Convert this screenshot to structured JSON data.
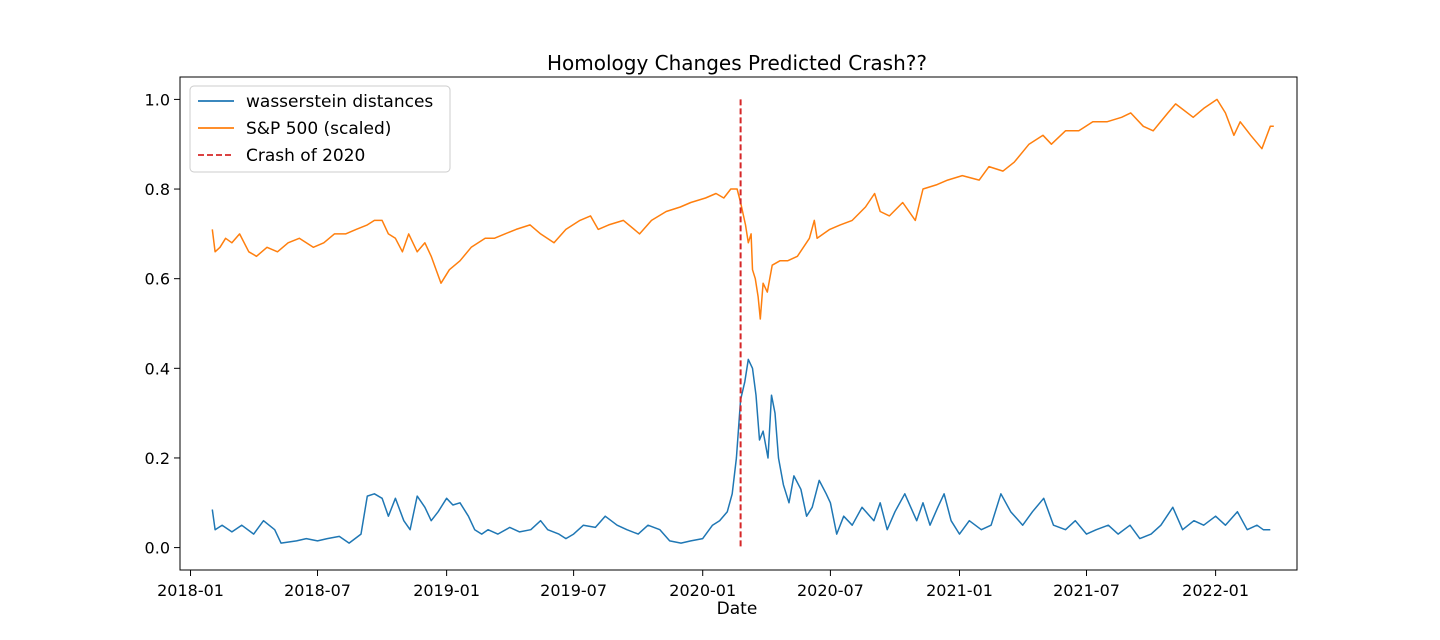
{
  "chart_data": {
    "type": "line",
    "title": "Homology Changes Predicted Crash??",
    "xlabel": "Date",
    "ylabel": "",
    "xlim": [
      "2017-12-17",
      "2022-04-27"
    ],
    "ylim": [
      -0.05,
      1.05
    ],
    "x_ticks": [
      "2018-01",
      "2018-07",
      "2019-01",
      "2019-07",
      "2020-01",
      "2020-07",
      "2021-01",
      "2021-07",
      "2022-01"
    ],
    "y_ticks": [
      "0.0",
      "0.2",
      "0.4",
      "0.6",
      "0.8",
      "1.0"
    ],
    "grid": false,
    "legend_position": "top-left",
    "series": [
      {
        "name": "wasserstein distances",
        "color": "#1f77b4",
        "points": [
          [
            "2018-02-01",
            0.085
          ],
          [
            "2018-02-05",
            0.04
          ],
          [
            "2018-02-15",
            0.05
          ],
          [
            "2018-03-01",
            0.035
          ],
          [
            "2018-03-15",
            0.05
          ],
          [
            "2018-04-01",
            0.03
          ],
          [
            "2018-04-15",
            0.06
          ],
          [
            "2018-05-01",
            0.04
          ],
          [
            "2018-05-10",
            0.01
          ],
          [
            "2018-06-01",
            0.015
          ],
          [
            "2018-06-15",
            0.02
          ],
          [
            "2018-07-01",
            0.015
          ],
          [
            "2018-07-15",
            0.02
          ],
          [
            "2018-08-01",
            0.025
          ],
          [
            "2018-08-15",
            0.01
          ],
          [
            "2018-09-01",
            0.03
          ],
          [
            "2018-09-10",
            0.115
          ],
          [
            "2018-09-20",
            0.12
          ],
          [
            "2018-10-01",
            0.11
          ],
          [
            "2018-10-10",
            0.07
          ],
          [
            "2018-10-20",
            0.11
          ],
          [
            "2018-11-01",
            0.06
          ],
          [
            "2018-11-10",
            0.04
          ],
          [
            "2018-11-20",
            0.115
          ],
          [
            "2018-12-01",
            0.09
          ],
          [
            "2018-12-10",
            0.06
          ],
          [
            "2018-12-20",
            0.08
          ],
          [
            "2019-01-01",
            0.11
          ],
          [
            "2019-01-10",
            0.095
          ],
          [
            "2019-01-20",
            0.1
          ],
          [
            "2019-02-01",
            0.07
          ],
          [
            "2019-02-10",
            0.04
          ],
          [
            "2019-02-20",
            0.03
          ],
          [
            "2019-03-01",
            0.04
          ],
          [
            "2019-03-15",
            0.03
          ],
          [
            "2019-04-01",
            0.045
          ],
          [
            "2019-04-15",
            0.035
          ],
          [
            "2019-05-01",
            0.04
          ],
          [
            "2019-05-15",
            0.06
          ],
          [
            "2019-05-25",
            0.04
          ],
          [
            "2019-06-10",
            0.03
          ],
          [
            "2019-06-20",
            0.02
          ],
          [
            "2019-07-01",
            0.03
          ],
          [
            "2019-07-15",
            0.05
          ],
          [
            "2019-08-01",
            0.045
          ],
          [
            "2019-08-15",
            0.07
          ],
          [
            "2019-09-01",
            0.05
          ],
          [
            "2019-09-15",
            0.04
          ],
          [
            "2019-10-01",
            0.03
          ],
          [
            "2019-10-15",
            0.05
          ],
          [
            "2019-11-01",
            0.04
          ],
          [
            "2019-11-15",
            0.015
          ],
          [
            "2019-12-01",
            0.01
          ],
          [
            "2019-12-15",
            0.015
          ],
          [
            "2020-01-01",
            0.02
          ],
          [
            "2020-01-15",
            0.05
          ],
          [
            "2020-01-25",
            0.06
          ],
          [
            "2020-02-05",
            0.08
          ],
          [
            "2020-02-12",
            0.12
          ],
          [
            "2020-02-18",
            0.2
          ],
          [
            "2020-02-24",
            0.33
          ],
          [
            "2020-03-01",
            0.37
          ],
          [
            "2020-03-06",
            0.42
          ],
          [
            "2020-03-12",
            0.4
          ],
          [
            "2020-03-17",
            0.34
          ],
          [
            "2020-03-22",
            0.24
          ],
          [
            "2020-03-27",
            0.26
          ],
          [
            "2020-04-03",
            0.2
          ],
          [
            "2020-04-08",
            0.34
          ],
          [
            "2020-04-13",
            0.3
          ],
          [
            "2020-04-18",
            0.2
          ],
          [
            "2020-04-25",
            0.14
          ],
          [
            "2020-05-03",
            0.1
          ],
          [
            "2020-05-10",
            0.16
          ],
          [
            "2020-05-20",
            0.13
          ],
          [
            "2020-05-28",
            0.07
          ],
          [
            "2020-06-05",
            0.09
          ],
          [
            "2020-06-15",
            0.15
          ],
          [
            "2020-06-25",
            0.12
          ],
          [
            "2020-07-01",
            0.1
          ],
          [
            "2020-07-10",
            0.03
          ],
          [
            "2020-07-20",
            0.07
          ],
          [
            "2020-08-01",
            0.05
          ],
          [
            "2020-08-15",
            0.09
          ],
          [
            "2020-09-01",
            0.06
          ],
          [
            "2020-09-10",
            0.1
          ],
          [
            "2020-09-20",
            0.04
          ],
          [
            "2020-10-01",
            0.08
          ],
          [
            "2020-10-15",
            0.12
          ],
          [
            "2020-11-01",
            0.06
          ],
          [
            "2020-11-10",
            0.1
          ],
          [
            "2020-11-20",
            0.05
          ],
          [
            "2020-12-01",
            0.09
          ],
          [
            "2020-12-10",
            0.12
          ],
          [
            "2020-12-20",
            0.06
          ],
          [
            "2021-01-01",
            0.03
          ],
          [
            "2021-01-15",
            0.06
          ],
          [
            "2021-02-01",
            0.04
          ],
          [
            "2021-02-15",
            0.05
          ],
          [
            "2021-03-01",
            0.12
          ],
          [
            "2021-03-15",
            0.08
          ],
          [
            "2021-04-01",
            0.05
          ],
          [
            "2021-04-15",
            0.08
          ],
          [
            "2021-05-01",
            0.11
          ],
          [
            "2021-05-15",
            0.05
          ],
          [
            "2021-06-01",
            0.04
          ],
          [
            "2021-06-15",
            0.06
          ],
          [
            "2021-07-01",
            0.03
          ],
          [
            "2021-07-15",
            0.04
          ],
          [
            "2021-08-01",
            0.05
          ],
          [
            "2021-08-15",
            0.03
          ],
          [
            "2021-09-01",
            0.05
          ],
          [
            "2021-09-15",
            0.02
          ],
          [
            "2021-10-01",
            0.03
          ],
          [
            "2021-10-15",
            0.05
          ],
          [
            "2021-11-01",
            0.09
          ],
          [
            "2021-11-15",
            0.04
          ],
          [
            "2021-12-01",
            0.06
          ],
          [
            "2021-12-15",
            0.05
          ],
          [
            "2022-01-01",
            0.07
          ],
          [
            "2022-01-15",
            0.05
          ],
          [
            "2022-02-01",
            0.08
          ],
          [
            "2022-02-15",
            0.04
          ],
          [
            "2022-03-01",
            0.05
          ],
          [
            "2022-03-10",
            0.04
          ],
          [
            "2022-03-20",
            0.04
          ]
        ]
      },
      {
        "name": "S&P 500 (scaled)",
        "color": "#ff7f0e",
        "points": [
          [
            "2018-02-01",
            0.71
          ],
          [
            "2018-02-05",
            0.66
          ],
          [
            "2018-02-12",
            0.67
          ],
          [
            "2018-02-20",
            0.69
          ],
          [
            "2018-03-01",
            0.68
          ],
          [
            "2018-03-12",
            0.7
          ],
          [
            "2018-03-25",
            0.66
          ],
          [
            "2018-04-05",
            0.65
          ],
          [
            "2018-04-20",
            0.67
          ],
          [
            "2018-05-05",
            0.66
          ],
          [
            "2018-05-20",
            0.68
          ],
          [
            "2018-06-05",
            0.69
          ],
          [
            "2018-06-25",
            0.67
          ],
          [
            "2018-07-10",
            0.68
          ],
          [
            "2018-07-25",
            0.7
          ],
          [
            "2018-08-10",
            0.7
          ],
          [
            "2018-08-25",
            0.71
          ],
          [
            "2018-09-10",
            0.72
          ],
          [
            "2018-09-20",
            0.73
          ],
          [
            "2018-10-01",
            0.73
          ],
          [
            "2018-10-10",
            0.7
          ],
          [
            "2018-10-20",
            0.69
          ],
          [
            "2018-10-30",
            0.66
          ],
          [
            "2018-11-08",
            0.7
          ],
          [
            "2018-11-20",
            0.66
          ],
          [
            "2018-12-01",
            0.68
          ],
          [
            "2018-12-10",
            0.65
          ],
          [
            "2018-12-24",
            0.59
          ],
          [
            "2019-01-05",
            0.62
          ],
          [
            "2019-01-20",
            0.64
          ],
          [
            "2019-02-05",
            0.67
          ],
          [
            "2019-02-25",
            0.69
          ],
          [
            "2019-03-10",
            0.69
          ],
          [
            "2019-03-25",
            0.7
          ],
          [
            "2019-04-10",
            0.71
          ],
          [
            "2019-04-30",
            0.72
          ],
          [
            "2019-05-15",
            0.7
          ],
          [
            "2019-06-03",
            0.68
          ],
          [
            "2019-06-20",
            0.71
          ],
          [
            "2019-07-10",
            0.73
          ],
          [
            "2019-07-25",
            0.74
          ],
          [
            "2019-08-05",
            0.71
          ],
          [
            "2019-08-20",
            0.72
          ],
          [
            "2019-09-10",
            0.73
          ],
          [
            "2019-10-03",
            0.7
          ],
          [
            "2019-10-20",
            0.73
          ],
          [
            "2019-11-10",
            0.75
          ],
          [
            "2019-11-30",
            0.76
          ],
          [
            "2019-12-15",
            0.77
          ],
          [
            "2020-01-05",
            0.78
          ],
          [
            "2020-01-20",
            0.79
          ],
          [
            "2020-01-31",
            0.78
          ],
          [
            "2020-02-10",
            0.8
          ],
          [
            "2020-02-19",
            0.8
          ],
          [
            "2020-02-24",
            0.77
          ],
          [
            "2020-03-02",
            0.72
          ],
          [
            "2020-03-06",
            0.68
          ],
          [
            "2020-03-10",
            0.7
          ],
          [
            "2020-03-12",
            0.62
          ],
          [
            "2020-03-16",
            0.6
          ],
          [
            "2020-03-20",
            0.56
          ],
          [
            "2020-03-23",
            0.51
          ],
          [
            "2020-03-27",
            0.59
          ],
          [
            "2020-04-02",
            0.57
          ],
          [
            "2020-04-09",
            0.63
          ],
          [
            "2020-04-20",
            0.64
          ],
          [
            "2020-05-01",
            0.64
          ],
          [
            "2020-05-15",
            0.65
          ],
          [
            "2020-06-01",
            0.69
          ],
          [
            "2020-06-08",
            0.73
          ],
          [
            "2020-06-12",
            0.69
          ],
          [
            "2020-06-30",
            0.71
          ],
          [
            "2020-07-15",
            0.72
          ],
          [
            "2020-08-01",
            0.73
          ],
          [
            "2020-08-20",
            0.76
          ],
          [
            "2020-09-02",
            0.79
          ],
          [
            "2020-09-10",
            0.75
          ],
          [
            "2020-09-23",
            0.74
          ],
          [
            "2020-10-12",
            0.77
          ],
          [
            "2020-10-30",
            0.73
          ],
          [
            "2020-11-10",
            0.8
          ],
          [
            "2020-11-30",
            0.81
          ],
          [
            "2020-12-15",
            0.82
          ],
          [
            "2021-01-05",
            0.83
          ],
          [
            "2021-01-29",
            0.82
          ],
          [
            "2021-02-12",
            0.85
          ],
          [
            "2021-03-04",
            0.84
          ],
          [
            "2021-03-20",
            0.86
          ],
          [
            "2021-04-10",
            0.9
          ],
          [
            "2021-04-30",
            0.92
          ],
          [
            "2021-05-12",
            0.9
          ],
          [
            "2021-06-01",
            0.93
          ],
          [
            "2021-06-20",
            0.93
          ],
          [
            "2021-07-10",
            0.95
          ],
          [
            "2021-07-30",
            0.95
          ],
          [
            "2021-08-20",
            0.96
          ],
          [
            "2021-09-02",
            0.97
          ],
          [
            "2021-09-20",
            0.94
          ],
          [
            "2021-10-04",
            0.93
          ],
          [
            "2021-10-25",
            0.97
          ],
          [
            "2021-11-05",
            0.99
          ],
          [
            "2021-11-30",
            0.96
          ],
          [
            "2021-12-15",
            0.98
          ],
          [
            "2022-01-03",
            1.0
          ],
          [
            "2022-01-15",
            0.97
          ],
          [
            "2022-01-27",
            0.92
          ],
          [
            "2022-02-05",
            0.95
          ],
          [
            "2022-02-20",
            0.92
          ],
          [
            "2022-03-08",
            0.89
          ],
          [
            "2022-03-20",
            0.94
          ],
          [
            "2022-03-25",
            0.94
          ]
        ]
      }
    ],
    "annotations": [
      {
        "name": "Crash of 2020",
        "type": "vline",
        "x": "2020-02-24",
        "y_range": [
          0.0,
          1.0
        ],
        "color": "#d62728",
        "style": "dashed"
      }
    ]
  }
}
